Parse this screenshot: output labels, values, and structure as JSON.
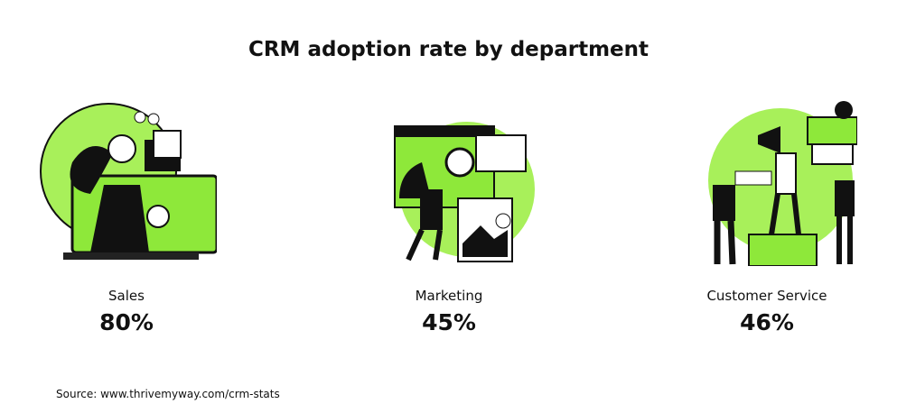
{
  "title": "CRM adoption rate by department",
  "items": [
    {
      "label": "Sales",
      "value": "80%"
    },
    {
      "label": "Marketing",
      "value": "45%"
    },
    {
      "label": "Customer Service",
      "value": "46%"
    }
  ],
  "source": "Source: www.thrivemyway.com/crm-stats"
}
